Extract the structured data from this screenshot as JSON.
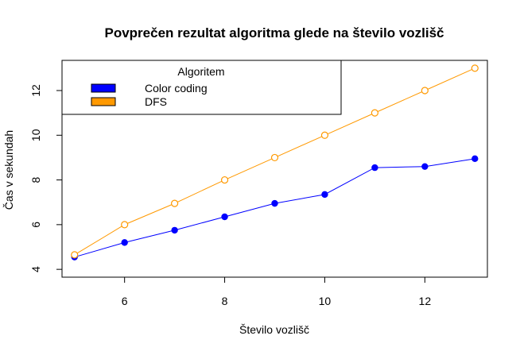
{
  "chart_data": {
    "type": "line",
    "title": "Povprečen rezultat algoritma glede na število vozlišč",
    "xlabel": "Število vozlišč",
    "ylabel": "Čas v sekundah",
    "x": [
      5,
      6,
      7,
      8,
      9,
      10,
      11,
      12,
      13
    ],
    "xlim": [
      4.75,
      13.25
    ],
    "ylim": [
      3.65,
      13.35
    ],
    "xticks": [
      6,
      8,
      10,
      12
    ],
    "yticks": [
      4,
      6,
      8,
      10,
      12
    ],
    "legend": {
      "title": "Algoritem",
      "placement": "top-left"
    },
    "series": [
      {
        "name": "Color coding",
        "color": "#0000ff",
        "marker": "filled-circle",
        "values": [
          4.55,
          5.2,
          5.75,
          6.35,
          6.95,
          7.35,
          8.55,
          8.6,
          8.95
        ]
      },
      {
        "name": "DFS",
        "color": "#ff9900",
        "marker": "open-circle",
        "values": [
          4.65,
          6.0,
          6.95,
          8.0,
          9.0,
          10.0,
          11.0,
          12.0,
          13.0
        ]
      }
    ]
  }
}
